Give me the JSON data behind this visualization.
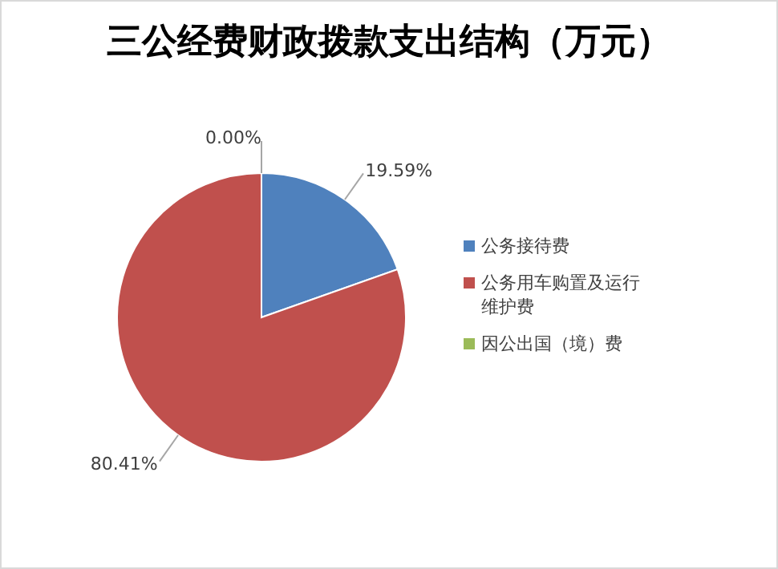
{
  "chart_data": {
    "type": "pie",
    "title": "三公经费财政拨款支出结构（万元）",
    "categories": [
      "公务接待费",
      "公务用车购置及运行维护费",
      "因公出国（境）费"
    ],
    "values": [
      19.59,
      80.41,
      0.0
    ],
    "colors": [
      "#4f81bd",
      "#c0504d",
      "#9bbb59"
    ],
    "value_labels": [
      "19.59%",
      "80.41%",
      "0.00%"
    ],
    "legend": "right"
  }
}
